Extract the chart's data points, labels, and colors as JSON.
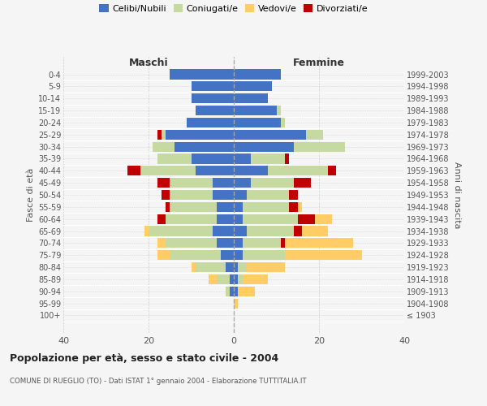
{
  "age_groups": [
    "100+",
    "95-99",
    "90-94",
    "85-89",
    "80-84",
    "75-79",
    "70-74",
    "65-69",
    "60-64",
    "55-59",
    "50-54",
    "45-49",
    "40-44",
    "35-39",
    "30-34",
    "25-29",
    "20-24",
    "15-19",
    "10-14",
    "5-9",
    "0-4"
  ],
  "birth_years": [
    "≤ 1903",
    "1904-1908",
    "1909-1913",
    "1914-1918",
    "1919-1923",
    "1924-1928",
    "1929-1933",
    "1934-1938",
    "1939-1943",
    "1944-1948",
    "1949-1953",
    "1954-1958",
    "1959-1963",
    "1964-1968",
    "1969-1973",
    "1974-1978",
    "1979-1983",
    "1984-1988",
    "1989-1993",
    "1994-1998",
    "1999-2003"
  ],
  "males": {
    "celibi": [
      0,
      0,
      1,
      1,
      2,
      3,
      4,
      5,
      4,
      4,
      5,
      5,
      9,
      10,
      14,
      16,
      11,
      9,
      10,
      10,
      15
    ],
    "coniugati": [
      0,
      0,
      1,
      3,
      7,
      12,
      12,
      15,
      12,
      11,
      10,
      10,
      13,
      8,
      5,
      1,
      0,
      0,
      0,
      0,
      0
    ],
    "vedovi": [
      0,
      0,
      0,
      2,
      1,
      3,
      2,
      1,
      0,
      0,
      0,
      0,
      0,
      0,
      0,
      0,
      0,
      0,
      0,
      0,
      0
    ],
    "divorziati": [
      0,
      0,
      0,
      0,
      0,
      0,
      0,
      0,
      2,
      1,
      2,
      3,
      3,
      0,
      0,
      1,
      0,
      0,
      0,
      0,
      0
    ]
  },
  "females": {
    "nubili": [
      0,
      0,
      1,
      1,
      1,
      2,
      2,
      3,
      2,
      2,
      3,
      4,
      8,
      4,
      14,
      17,
      11,
      10,
      8,
      9,
      11
    ],
    "coniugate": [
      0,
      0,
      0,
      1,
      2,
      10,
      9,
      11,
      13,
      11,
      10,
      10,
      14,
      8,
      12,
      4,
      1,
      1,
      0,
      0,
      0
    ],
    "vedove": [
      0,
      1,
      4,
      6,
      9,
      18,
      17,
      8,
      8,
      3,
      1,
      1,
      0,
      1,
      0,
      0,
      0,
      0,
      0,
      0,
      0
    ],
    "divorziate": [
      0,
      0,
      0,
      0,
      0,
      0,
      1,
      2,
      4,
      2,
      2,
      4,
      2,
      1,
      0,
      0,
      0,
      0,
      0,
      0,
      0
    ]
  },
  "colors": {
    "celibi": "#4472C4",
    "coniugati": "#C5D9A0",
    "vedovi": "#FFCC66",
    "divorziati": "#C00000"
  },
  "title": "Popolazione per età, sesso e stato civile - 2004",
  "subtitle": "COMUNE DI RUEGLIO (TO) - Dati ISTAT 1° gennaio 2004 - Elaborazione TUTTITALIA.IT",
  "header_left": "Maschi",
  "header_right": "Femmine",
  "ylabel_left": "Fasce di età",
  "ylabel_right": "Anni di nascita",
  "xlim": 40,
  "background_color": "#f5f5f5",
  "grid_color": "#cccccc",
  "legend_labels": [
    "Celibi/Nubili",
    "Coniugati/e",
    "Vedovi/e",
    "Divorziati/e"
  ]
}
